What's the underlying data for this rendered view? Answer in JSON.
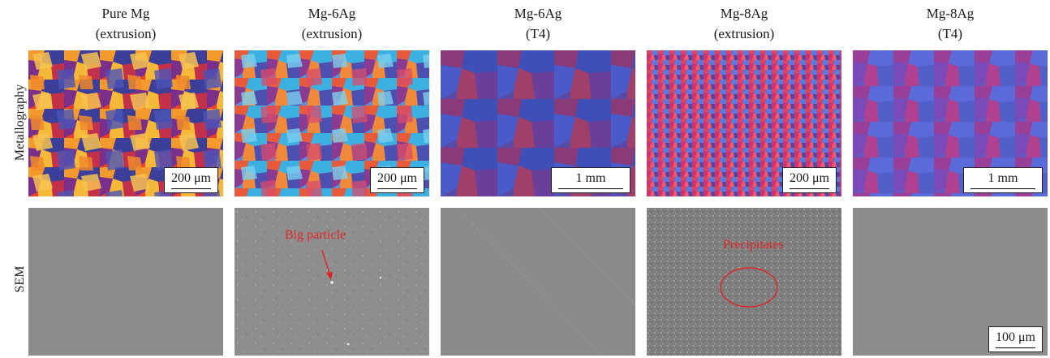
{
  "columns": [
    {
      "line1": "Pure Mg",
      "line2": "(extrusion)"
    },
    {
      "line1": "Mg-6Ag",
      "line2": "(extrusion)"
    },
    {
      "line1": "Mg-6Ag",
      "line2": "(T4)"
    },
    {
      "line1": "Mg-8Ag",
      "line2": "(extrusion)"
    },
    {
      "line1": "Mg-8Ag",
      "line2": "(T4)"
    }
  ],
  "rows": {
    "metallography": "Metallography",
    "sem": "SEM"
  },
  "scale_bars": {
    "pure_mg_extrusion": "200 μm",
    "mg6ag_extrusion": "200 μm",
    "mg6ag_t4": "1 mm",
    "mg8ag_extrusion": "200 μm",
    "mg8ag_t4": "1 mm",
    "sem": "100 μm"
  },
  "annotations": {
    "big_particle": "Big particle",
    "precipitates": "Precipitates"
  },
  "colors": {
    "annotation": "#e02424",
    "sem_background": "#8a8a8a"
  }
}
